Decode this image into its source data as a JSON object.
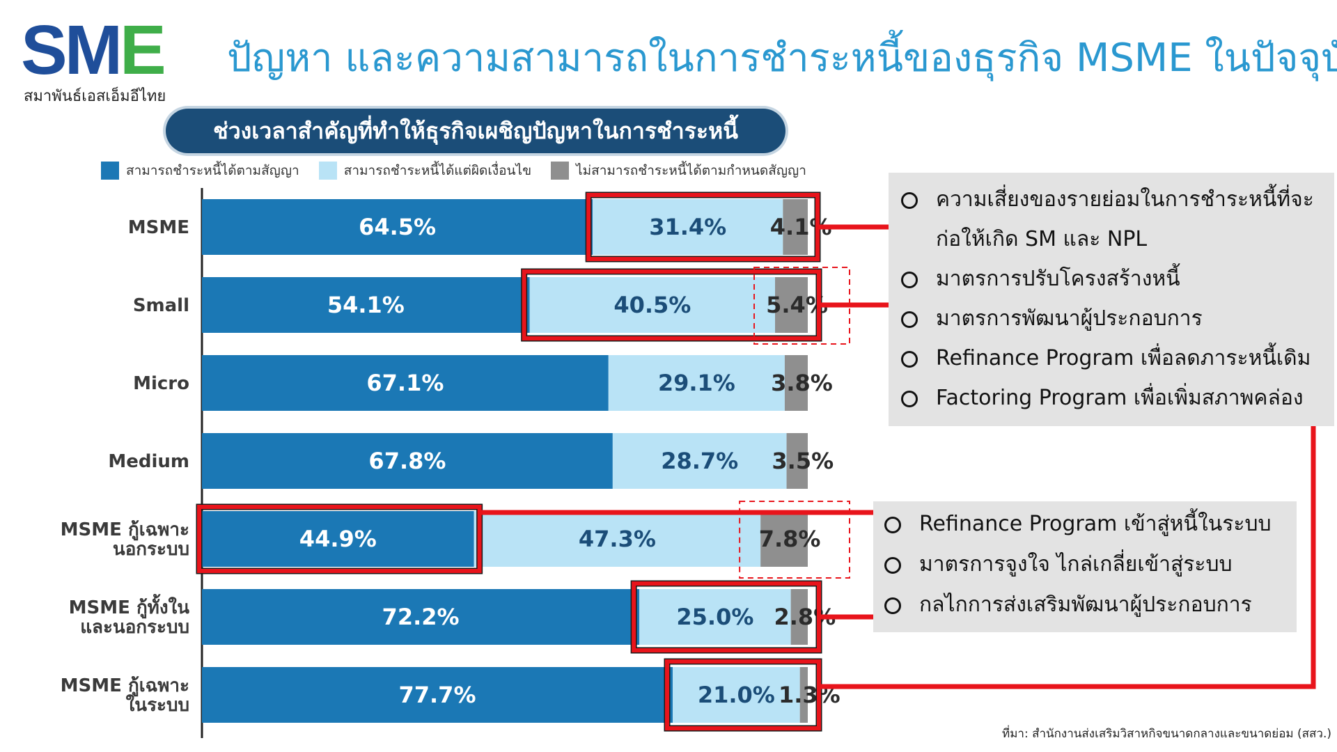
{
  "logo": {
    "letters_s": "S",
    "letters_m": "M",
    "letters_e": "E",
    "subtitle": "สมาพันธ์เอสเอ็มอีไทย"
  },
  "title": "ปัญหา และความสามารถในการชำระหนี้ของธุรกิจ MSME ในปัจจุบัน",
  "chart_header": "ช่วงเวลาสำคัญที่ทำให้ธุรกิจเผชิญปัญหาในการชำระหนี้",
  "legend": [
    {
      "label": "สามารถชำระหนี้ได้ตามสัญญา",
      "color": "#1b78b5"
    },
    {
      "label": "สามารถชำระหนี้ได้แต่ผิดเงื่อนไข",
      "color": "#b9e3f6"
    },
    {
      "label": "ไม่สามารถชำระหนี้ได้ตามกำหนดสัญญา",
      "color": "#8f8f8f"
    }
  ],
  "chart_data": {
    "type": "bar",
    "orientation": "horizontal",
    "stacked": true,
    "categories": [
      "MSME",
      "Small",
      "Micro",
      "Medium",
      "MSME กู้เฉพาะ นอกระบบ",
      "MSME กู้ทั้งใน และนอกระบบ",
      "MSME กู้เฉพาะ ในระบบ"
    ],
    "category_lines": [
      [
        "MSME"
      ],
      [
        "Small"
      ],
      [
        "Micro"
      ],
      [
        "Medium"
      ],
      [
        "MSME กู้เฉพาะ",
        "นอกระบบ"
      ],
      [
        "MSME กู้ทั้งใน",
        "และนอกระบบ"
      ],
      [
        "MSME กู้เฉพาะ",
        "ในระบบ"
      ]
    ],
    "series": [
      {
        "name": "สามารถชำระหนี้ได้ตามสัญญา",
        "values": [
          64.5,
          54.1,
          67.1,
          67.8,
          44.9,
          72.2,
          77.7
        ],
        "labels": [
          "64.5%",
          "54.1%",
          "67.1%",
          "67.8%",
          "44.9%",
          "72.2%",
          "77.7%"
        ]
      },
      {
        "name": "สามารถชำระหนี้ได้แต่ผิดเงื่อนไข",
        "values": [
          31.4,
          40.5,
          29.1,
          28.7,
          47.3,
          25.0,
          21.0
        ],
        "labels": [
          "31.4%",
          "40.5%",
          "29.1%",
          "28.7%",
          "47.3%",
          "25.0%",
          "21.0%"
        ]
      },
      {
        "name": "ไม่สามารถชำระหนี้ได้ตามกำหนดสัญญา",
        "values": [
          4.1,
          5.4,
          3.8,
          3.5,
          7.8,
          2.8,
          1.3
        ],
        "labels": [
          "4.1%",
          "5.4%",
          "3.8%",
          "3.5%",
          "7.8%",
          "2.8%",
          "1.3%"
        ]
      }
    ],
    "colors": [
      "#1b78b5",
      "#b9e3f6",
      "#8f8f8f"
    ],
    "label_colors": [
      "#ffffff",
      "#1b4d78",
      "#2b2b2b"
    ],
    "xlim": [
      0,
      100
    ],
    "highlight_color": "#e8141b"
  },
  "callouts": {
    "top": [
      "ความเสี่ยงของรายย่อมในการชำระหนี้ที่จะก่อให้เกิด SM และ NPL",
      "มาตรการปรับโครงสร้างหนี้",
      "มาตรการพัฒนาผู้ประกอบการ",
      "Refinance Program เพื่อลดภาระหนี้เดิม",
      "Factoring Program เพื่อเพิ่มสภาพคล่อง"
    ],
    "bottom": [
      "Refinance Program เข้าสู่หนี้ในระบบ",
      "มาตรการจูงใจ ไกล่เกลี่ยเข้าสู่ระบบ",
      "กลไกการส่งเสริมพัฒนาผู้ประกอบการ"
    ]
  },
  "source": "ที่มา: สำนักงานส่งเสริมวิสาหกิจขนาดกลางและขนาดย่อม (สสว.)"
}
